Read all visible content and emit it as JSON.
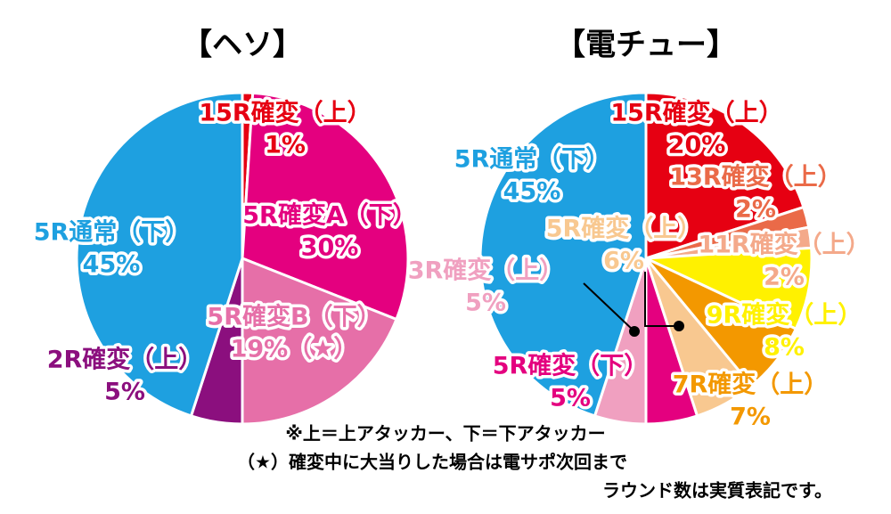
{
  "chart_data": [
    {
      "type": "pie",
      "title": "【ヘソ】",
      "categories": [
        "15R確変（上）",
        "5R確変A（下）",
        "5R確変B（下）",
        "2R確変（上）",
        "5R通常（下）"
      ],
      "values": [
        1,
        30,
        19,
        5,
        45
      ],
      "value_labels": [
        "1%",
        "30%",
        "19%（★）",
        "5%",
        "45%"
      ],
      "colors": [
        "#e60012",
        "#e4007f",
        "#e66fa8",
        "#8b0f7e",
        "#1ea0e0"
      ]
    },
    {
      "type": "pie",
      "title": "【電チュー】",
      "categories": [
        "15R確変（上）",
        "13R確変（上）",
        "11R確変（上）",
        "9R確変（上）",
        "7R確変（上）",
        "5R確変（上）",
        "5R確変（下）",
        "3R確変（上）",
        "5R通常（下）"
      ],
      "values": [
        20,
        2,
        2,
        8,
        7,
        6,
        5,
        5,
        45
      ],
      "value_labels": [
        "20%",
        "2%",
        "2%",
        "8%",
        "7%",
        "6%",
        "5%",
        "5%",
        "45%"
      ],
      "colors": [
        "#e60012",
        "#ea6a48",
        "#f4a98a",
        "#fff100",
        "#f39800",
        "#f8c890",
        "#e4007f",
        "#f0a0c0",
        "#1ea0e0"
      ]
    }
  ],
  "notes": [
    "※上＝上アタッカー、下＝下アタッカー",
    "（★）確変中に大当りした場合は電サポ次回まで",
    "ラウンド数は実質表記です。"
  ]
}
